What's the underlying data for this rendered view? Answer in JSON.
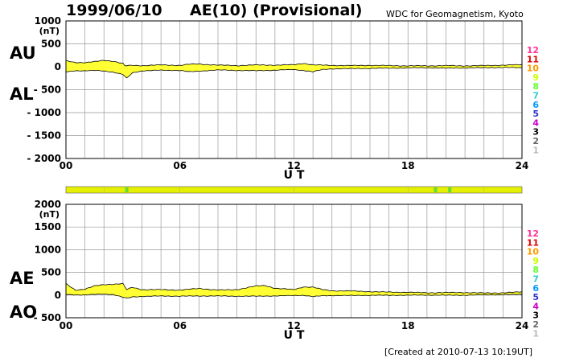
{
  "header": {
    "date": "1999/06/10",
    "title": "AE(10) (Provisional)",
    "source": "WDC for Geomagnetism, Kyoto"
  },
  "footer": {
    "created": "[Created at 2010-07-13 10:19UT]"
  },
  "colors": {
    "fill": "#ffff33",
    "grid": "#999999",
    "quality_bar": "#e5f000",
    "quality_marker": "#66dd33",
    "scale_text": [
      "#ff3399",
      "#dd0000",
      "#ff9900",
      "#ccff00",
      "#66ff33",
      "#33cccc",
      "#0099ff",
      "#3333cc",
      "#cc00cc",
      "#000000",
      "#666666",
      "#bbbbbb"
    ]
  },
  "legend_scale": [
    "12",
    "11",
    "10",
    "9",
    "8",
    "7",
    "6",
    "5",
    "4",
    "3",
    "2",
    "1"
  ],
  "quality_bar": {
    "markers_ut": [
      3.2,
      19.45,
      20.2
    ]
  },
  "chart_data": [
    {
      "type": "area",
      "title": "",
      "xlabel": "U T",
      "ylabel_unit": "(nT)",
      "series_labels": [
        "AU",
        "AL"
      ],
      "xlim": [
        0,
        24
      ],
      "ylim": [
        -2000,
        1000
      ],
      "x_ticks": [
        "00",
        "06",
        "12",
        "18",
        "24"
      ],
      "x_tick_values": [
        0,
        6,
        12,
        18,
        24
      ],
      "y_ticks": [
        "1000",
        "500",
        "0",
        "- 500",
        "- 1000",
        "- 1500",
        "- 2000"
      ],
      "y_tick_values": [
        1000,
        500,
        0,
        -500,
        -1000,
        -1500,
        -2000
      ],
      "grid": true,
      "series": [
        {
          "name": "AU",
          "x": [
            0,
            0.5,
            1,
            1.5,
            2,
            2.5,
            3,
            3.1,
            3.5,
            4,
            5,
            6,
            6.5,
            7,
            8,
            9,
            10,
            11,
            12,
            12.5,
            13,
            13.5,
            14,
            15,
            16,
            17,
            18,
            19,
            20,
            21,
            22,
            23,
            24
          ],
          "y": [
            130,
            95,
            90,
            110,
            140,
            120,
            70,
            20,
            30,
            25,
            40,
            30,
            55,
            60,
            35,
            25,
            40,
            35,
            45,
            75,
            40,
            35,
            30,
            25,
            30,
            25,
            20,
            20,
            25,
            20,
            25,
            35,
            45
          ]
        },
        {
          "name": "AL",
          "x": [
            0,
            0.5,
            1,
            1.5,
            2,
            2.5,
            3,
            3.2,
            3.5,
            4,
            5,
            6,
            6.5,
            7,
            8,
            9,
            10,
            11,
            12,
            12.5,
            13,
            13.5,
            14,
            15,
            16,
            17,
            18,
            19,
            20,
            21,
            22,
            23,
            24
          ],
          "y": [
            -110,
            -85,
            -90,
            -80,
            -90,
            -120,
            -170,
            -250,
            -130,
            -90,
            -75,
            -80,
            -110,
            -95,
            -70,
            -80,
            -85,
            -75,
            -60,
            -80,
            -110,
            -60,
            -45,
            -40,
            -35,
            -30,
            -25,
            -20,
            -30,
            -25,
            -20,
            -15,
            -20
          ]
        }
      ]
    },
    {
      "type": "area",
      "title": "",
      "xlabel": "U T",
      "ylabel_unit": "(nT)",
      "series_labels": [
        "AE",
        "AO"
      ],
      "xlim": [
        0,
        24
      ],
      "ylim": [
        -500,
        2000
      ],
      "x_ticks": [
        "00",
        "06",
        "12",
        "18",
        "24"
      ],
      "x_tick_values": [
        0,
        6,
        12,
        18,
        24
      ],
      "y_ticks": [
        "2000",
        "1500",
        "1000",
        "500",
        "0",
        "- 500"
      ],
      "y_tick_values": [
        2000,
        1500,
        1000,
        500,
        0,
        -500
      ],
      "grid": true,
      "series": [
        {
          "name": "AE",
          "x": [
            0,
            0.5,
            1,
            1.5,
            2,
            2.5,
            3,
            3.2,
            3.5,
            4,
            5,
            6,
            7,
            8,
            9,
            10,
            10.5,
            11,
            12,
            12.5,
            13,
            13.5,
            14,
            15,
            16,
            17,
            18,
            19,
            20,
            21,
            22,
            23,
            24
          ],
          "y": [
            250,
            110,
            130,
            200,
            230,
            240,
            250,
            120,
            170,
            120,
            120,
            110,
            145,
            110,
            120,
            200,
            210,
            150,
            120,
            180,
            175,
            120,
            95,
            90,
            75,
            65,
            60,
            50,
            55,
            55,
            45,
            50,
            70
          ]
        },
        {
          "name": "AO",
          "x": [
            0,
            0.5,
            1,
            1.5,
            2,
            2.5,
            3,
            3.2,
            3.5,
            4,
            5,
            6,
            7,
            8,
            9,
            10,
            10.5,
            11,
            12,
            12.5,
            13,
            13.5,
            14,
            15,
            16,
            17,
            18,
            19,
            20,
            21,
            22,
            23,
            24
          ],
          "y": [
            15,
            5,
            0,
            15,
            25,
            10,
            -50,
            -70,
            -40,
            -30,
            -20,
            -25,
            -20,
            -20,
            -25,
            -25,
            -20,
            -20,
            -10,
            -5,
            -35,
            -15,
            -10,
            -10,
            -5,
            -5,
            -3,
            0,
            -3,
            -3,
            5,
            10,
            15
          ]
        }
      ]
    }
  ]
}
